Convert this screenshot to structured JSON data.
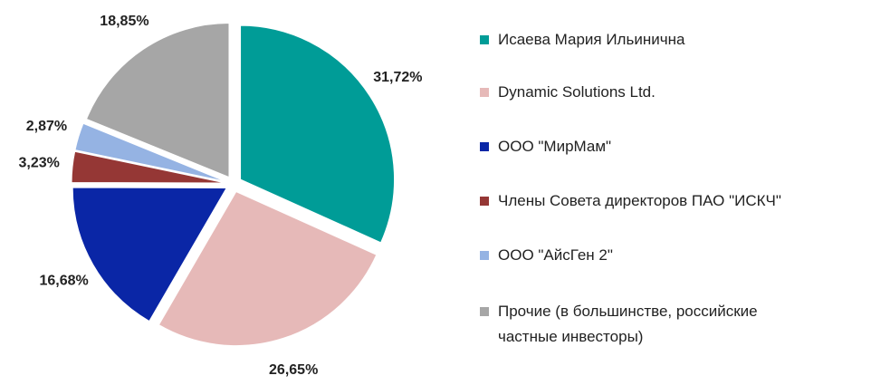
{
  "chart_data": {
    "type": "pie",
    "categories": [
      "Исаева Мария Ильинична",
      "Dynamic Solutions Ltd.",
      "ООО \"МирМам\"",
      "Члены Совета директоров ПАО \"ИСКЧ\"",
      "ООО \"АйсГен 2\"",
      "Прочие (в большинстве, российские частные инвесторы)"
    ],
    "values": [
      31.72,
      26.65,
      16.68,
      3.23,
      2.87,
      18.85
    ],
    "value_labels": [
      "31,72%",
      "26,65%",
      "16,68%",
      "3,23%",
      "2,87%",
      "18,85%"
    ],
    "colors": [
      "#009c97",
      "#e6b9b8",
      "#0a26a6",
      "#953735",
      "#95b3e3",
      "#a6a6a6"
    ],
    "legend": "right"
  }
}
